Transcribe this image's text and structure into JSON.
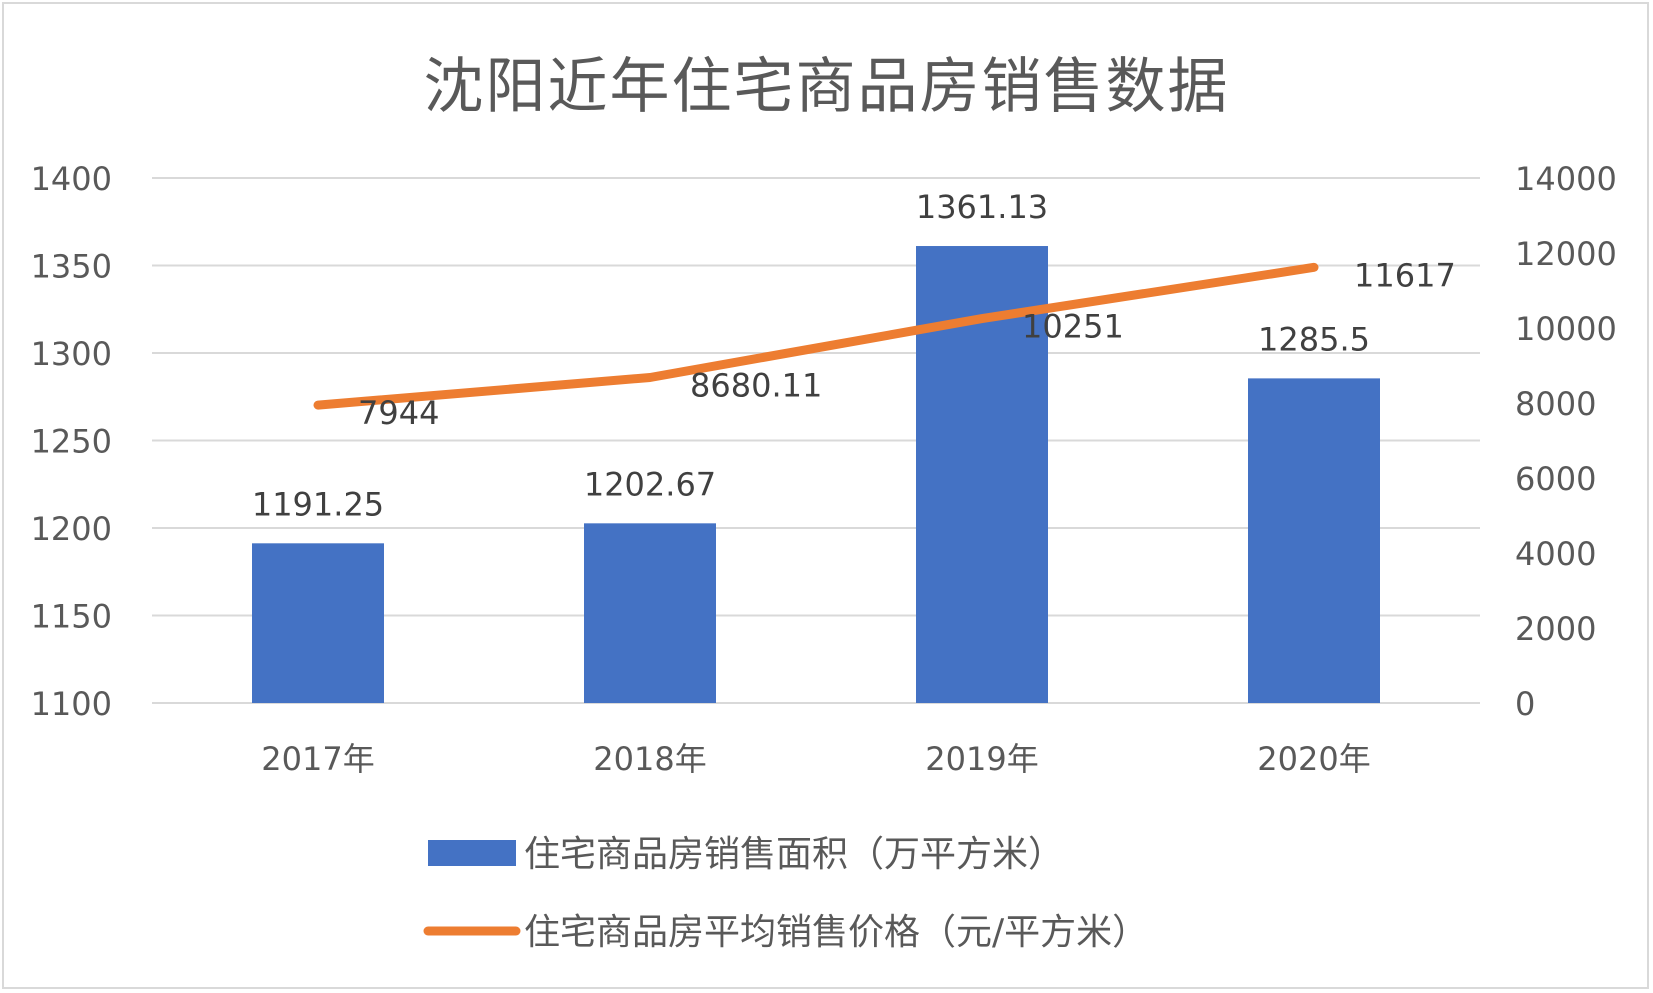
{
  "chart_data": {
    "type": "bar+line",
    "title": "沈阳近年住宅商品房销售数据",
    "categories": [
      "2017年",
      "2018年",
      "2019年",
      "2020年"
    ],
    "series": [
      {
        "name": "住宅商品房销售面积（万平方米）",
        "type": "bar",
        "axis": "left",
        "color": "#4472C4",
        "values": [
          1191.25,
          1202.67,
          1361.13,
          1285.5
        ],
        "labels": [
          "1191.25",
          "1202.67",
          "1361.13",
          "1285.5"
        ]
      },
      {
        "name": "住宅商品房平均销售价格（元/平方米）",
        "type": "line",
        "axis": "right",
        "color": "#ED7D31",
        "values": [
          7944,
          8680.11,
          10251,
          11617
        ],
        "labels": [
          "7944",
          "8680.11",
          "10251",
          "11617"
        ]
      }
    ],
    "left_axis": {
      "min": 1100,
      "max": 1400,
      "ticks": [
        "1100",
        "1150",
        "1200",
        "1250",
        "1300",
        "1350",
        "1400"
      ]
    },
    "right_axis": {
      "min": 0,
      "max": 14000,
      "ticks": [
        "0",
        "2000",
        "4000",
        "6000",
        "8000",
        "10000",
        "12000",
        "14000"
      ]
    },
    "grid": true,
    "legend_position": "bottom"
  }
}
